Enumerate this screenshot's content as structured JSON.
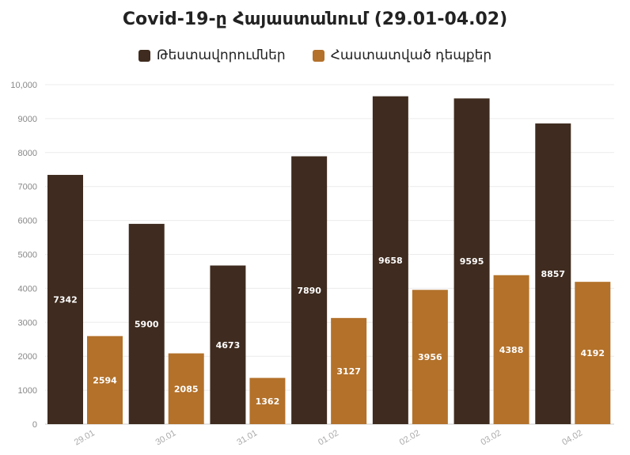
{
  "chart_data": {
    "type": "bar",
    "title": "Covid-19-ը Հայաստանում (29.01-04.02)",
    "categories": [
      "29.01",
      "30.01",
      "31.01",
      "01.02",
      "02.02",
      "03.02",
      "04.02"
    ],
    "series": [
      {
        "name": "Թեստավորումներ",
        "color": "#3f2b1f",
        "values": [
          7342,
          5900,
          4673,
          7890,
          9658,
          9595,
          8857
        ]
      },
      {
        "name": "Հաստատված դեպքեր",
        "color": "#b3712a",
        "values": [
          2594,
          2085,
          1362,
          3127,
          3956,
          4388,
          4192
        ]
      }
    ],
    "ylim": [
      0,
      10000
    ],
    "yticks": [
      "0",
      "1000",
      "2000",
      "3000",
      "4000",
      "5000",
      "6000",
      "7000",
      "8000",
      "9000",
      "10,000"
    ],
    "ytick_values": [
      0,
      1000,
      2000,
      3000,
      4000,
      5000,
      6000,
      7000,
      8000,
      9000,
      10000
    ],
    "grid": true,
    "legend_position": "top-center"
  }
}
